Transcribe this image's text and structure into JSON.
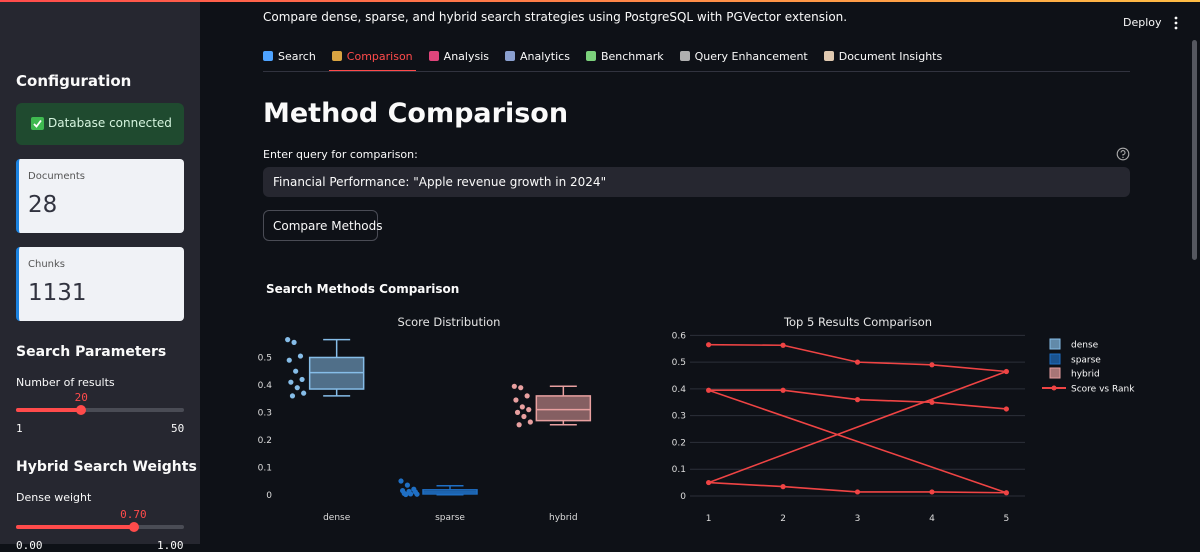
{
  "header": {
    "subtitle": "Compare dense, sparse, and hybrid search strategies using PostgreSQL with PGVector extension.",
    "deploy": "Deploy"
  },
  "sidebar": {
    "title": "Configuration",
    "status": "Database connected",
    "metrics": [
      {
        "label": "Documents",
        "value": 28
      },
      {
        "label": "Chunks",
        "value": 1131
      }
    ],
    "search_parameters": {
      "title": "Search Parameters",
      "slider": {
        "label": "Number of results",
        "value": 20,
        "min": 1,
        "max": 50
      }
    },
    "hybrid_weights": {
      "title": "Hybrid Search Weights",
      "slider": {
        "label": "Dense weight",
        "value": {
          "value": 0.7,
          "label": "0.70"
        },
        "min": {
          "value": 0,
          "label": "0.00"
        },
        "max": {
          "value": 1,
          "label": "1.00"
        }
      }
    }
  },
  "tabs": [
    "Search",
    "Comparison",
    "Analysis",
    "Analytics",
    "Benchmark",
    "Query Enhancement",
    "Document Insights"
  ],
  "active_tab": 1,
  "content": {
    "title": "Method Comparison",
    "query_label": "Enter query for comparison:",
    "query_value": "Financial Performance: \"Apple revenue growth in 2024\"",
    "button": "Compare Methods",
    "section_title": "Search Methods Comparison"
  },
  "chart_data": [
    {
      "type": "box",
      "title": "Score Distribution",
      "categories": [
        "dense",
        "sparse",
        "hybrid"
      ],
      "series": [
        {
          "name": "dense",
          "color": "#86bde8",
          "values": [
            0.565,
            0.555,
            0.505,
            0.49,
            0.45,
            0.42,
            0.41,
            0.39,
            0.37,
            0.36
          ],
          "min": 0.36,
          "q1": 0.385,
          "median": 0.445,
          "q3": 0.5,
          "max": 0.565
        },
        {
          "name": "sparse",
          "color": "#1f6fc4",
          "values": [
            0.05,
            0.035,
            0.02,
            0.015,
            0.012,
            0.01,
            0.005,
            0.003,
            0.002,
            0.001
          ],
          "min": 0,
          "q1": 0.003,
          "median": 0.01,
          "q3": 0.018,
          "max": 0.033
        },
        {
          "name": "hybrid",
          "color": "#e8a0a0",
          "values": [
            0.395,
            0.39,
            0.36,
            0.345,
            0.32,
            0.31,
            0.3,
            0.285,
            0.265,
            0.255
          ],
          "min": 0.255,
          "q1": 0.27,
          "median": 0.31,
          "q3": 0.36,
          "max": 0.395
        }
      ],
      "ylim": [
        -0.03,
        0.6
      ],
      "yticks": [
        0,
        0.1,
        0.2,
        0.3,
        0.4,
        0.5
      ],
      "grid": false
    },
    {
      "type": "line",
      "title": "Top 5 Results Comparison",
      "x": [
        1,
        2,
        3,
        4,
        5,
        1,
        2,
        3,
        4,
        5,
        1,
        2,
        3,
        4,
        5
      ],
      "series": [
        {
          "name": "Score vs Rank",
          "color": "#ef4444",
          "values": [
            0.565,
            0.563,
            0.5,
            0.49,
            0.465,
            0.05,
            0.035,
            0.015,
            0.015,
            0.012,
            0.395,
            0.395,
            0.36,
            0.35,
            0.325
          ]
        }
      ],
      "xlim": [
        0.75,
        5.25
      ],
      "xticks": [
        1,
        2,
        3,
        4,
        5
      ],
      "ylim": [
        -0.03,
        0.62
      ],
      "yticks": [
        0,
        0.1,
        0.2,
        0.3,
        0.4,
        0.5,
        0.6
      ],
      "grid": true
    }
  ]
}
